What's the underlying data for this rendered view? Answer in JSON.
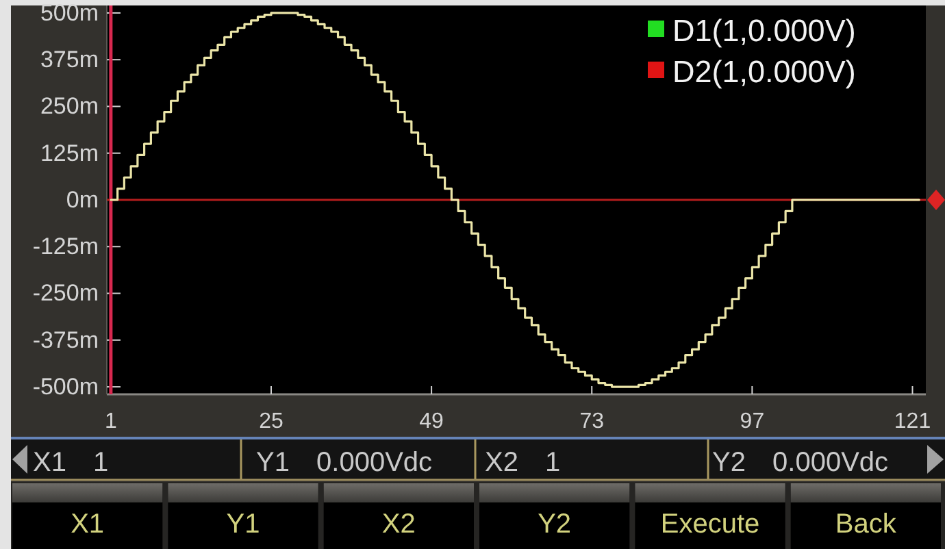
{
  "chart_data": {
    "type": "step",
    "x": [
      1,
      2,
      3,
      4,
      5,
      6,
      7,
      8,
      9,
      10,
      11,
      12,
      13,
      14,
      15,
      16,
      17,
      18,
      19,
      20,
      21,
      22,
      23,
      24,
      25,
      26,
      27,
      28,
      29,
      30,
      31,
      32,
      33,
      34,
      35,
      36,
      37,
      38,
      39,
      40,
      41,
      42,
      43,
      44,
      45,
      46,
      47,
      48,
      49,
      50,
      51,
      52,
      53,
      54,
      55,
      56,
      57,
      58,
      59,
      60,
      61,
      62,
      63,
      64,
      65,
      66,
      67,
      68,
      69,
      70,
      71,
      72,
      73,
      74,
      75,
      76,
      77,
      78,
      79,
      80,
      81,
      82,
      83,
      84,
      85,
      86,
      87,
      88,
      89,
      90,
      91,
      92,
      93,
      94,
      95,
      96,
      97,
      98,
      99,
      100,
      101,
      102,
      103,
      104,
      105,
      106,
      107,
      108,
      109,
      110,
      111,
      112,
      113,
      114,
      115,
      116,
      117,
      118,
      119,
      120,
      121,
      122
    ],
    "series": [
      {
        "color": "#ebe5a8",
        "values": [
          0,
          30,
          60,
          90,
          120,
          150,
          180,
          210,
          235,
          265,
          290,
          315,
          335,
          360,
          380,
          400,
          415,
          435,
          450,
          460,
          470,
          480,
          490,
          495,
          500,
          500,
          500,
          500,
          495,
          490,
          480,
          470,
          460,
          450,
          435,
          415,
          400,
          380,
          360,
          335,
          315,
          290,
          265,
          235,
          210,
          180,
          150,
          120,
          90,
          60,
          30,
          0,
          -30,
          -60,
          -90,
          -120,
          -150,
          -180,
          -210,
          -235,
          -265,
          -290,
          -315,
          -335,
          -360,
          -380,
          -400,
          -415,
          -435,
          -450,
          -460,
          -470,
          -480,
          -490,
          -495,
          -500,
          -500,
          -500,
          -500,
          -495,
          -490,
          -480,
          -470,
          -460,
          -450,
          -435,
          -415,
          -400,
          -380,
          -360,
          -335,
          -315,
          -290,
          -265,
          -235,
          -210,
          -180,
          -150,
          -120,
          -90,
          -60,
          -30,
          0,
          0,
          0,
          0,
          0,
          0,
          0,
          0,
          0,
          0,
          0,
          0,
          0,
          0,
          0,
          0,
          0,
          0,
          0,
          0
        ]
      }
    ],
    "xlim": [
      0.4,
      123
    ],
    "xticks": [
      1,
      25,
      49,
      73,
      97,
      121
    ],
    "ylim": [
      -520,
      520
    ],
    "yticks": [
      {
        "value": 500,
        "label": "500m"
      },
      {
        "value": 375,
        "label": "375m"
      },
      {
        "value": 250,
        "label": "250m"
      },
      {
        "value": 125,
        "label": "125m"
      },
      {
        "value": 0,
        "label": "0m"
      },
      {
        "value": -125,
        "label": "-125m"
      },
      {
        "value": -250,
        "label": "-250m"
      },
      {
        "value": -375,
        "label": "-375m"
      },
      {
        "value": -500,
        "label": "-500m"
      }
    ],
    "ref_lines": [
      {
        "axis": "x",
        "value": 1,
        "color": "#d8284f"
      },
      {
        "axis": "y",
        "value": 0,
        "color": "#b31d1d"
      }
    ],
    "annotations": [
      "D1(1,0.000V)",
      "D2(1,0.000V)",
      "X1 1",
      "Y1 0.000Vdc",
      "X2 1",
      "Y2 0.000Vdc",
      "X1",
      "Y1",
      "X2",
      "Y2",
      "Execute",
      "Back"
    ]
  }
}
